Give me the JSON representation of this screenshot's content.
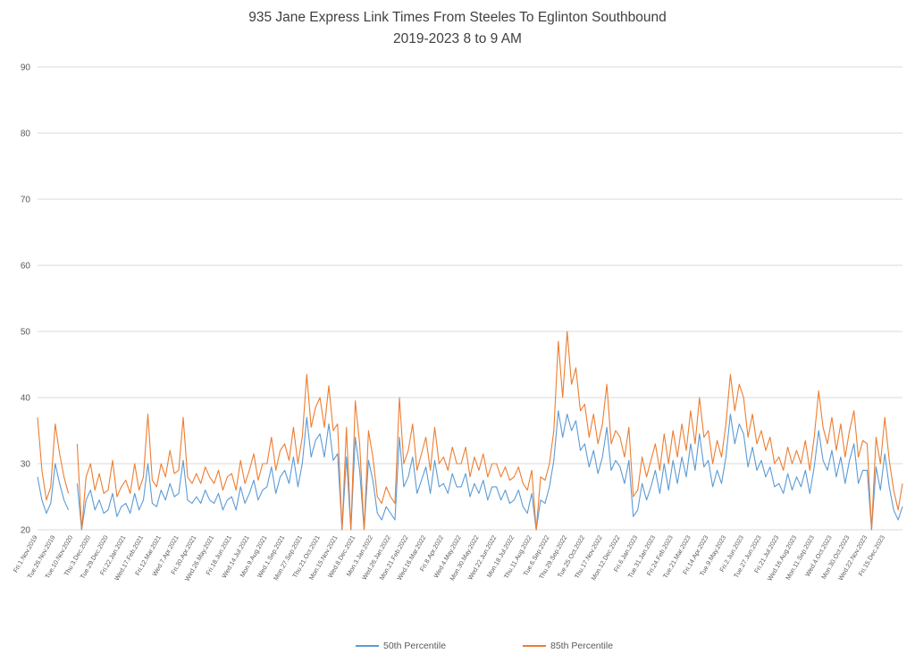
{
  "title": {
    "line1": "935 Jane Express Link Times From Steeles To Eglinton Southbound",
    "line2": "2019-2023 8 to 9 AM"
  },
  "colors": {
    "series_50th": "#5B9BD5",
    "series_85th": "#ED7D31",
    "gridline": "#D9D9D9",
    "axis_text": "#595959",
    "title_text": "#404040",
    "background": "#FFFFFF"
  },
  "chart_data": {
    "type": "line",
    "title": "935 Jane Express Link Times From Steeles To Eglinton Southbound",
    "subtitle": "2019-2023 8 to 9 AM",
    "ylim": [
      20,
      90
    ],
    "yticks": [
      20,
      30,
      40,
      50,
      60,
      70,
      80,
      90
    ],
    "grid": true,
    "legend_position": "bottom",
    "samples_per_category": 4,
    "categories": [
      "Fri.1.Nov.2019",
      "Tue.26.Nov.2019",
      "Tue.10.Nov.2020",
      "Thu.3.Dec.2020",
      "Tue.29.Dec.2020",
      "Fri.22.Jan.2021",
      "Wed.17.Feb.2021",
      "Fri.12.Mar.2021",
      "Wed.7.Apr.2021",
      "Fri.30.Apr.2021",
      "Wed.26.May.2021",
      "Fri.18.Jun.2021",
      "Wed.14.Jul.2021",
      "Mon.9.Aug.2021",
      "Wed.1.Sep.2021",
      "Mon.27.Sep.2021",
      "Thu.21.Oct.2021",
      "Mon.15.Nov.2021",
      "Wed.8.Dec.2021",
      "Mon.3.Jan.2022",
      "Wed.26.Jan.2022",
      "Mon.21.Feb.2022",
      "Wed.16.Mar.2022",
      "Fri.8.Apr.2022",
      "Wed.4.May.2022",
      "Mon.30.May.2022",
      "Wed.22.Jun.2022",
      "Mon.18.Jul.2022",
      "Thu.11.Aug.2022",
      "Tue.6.Sep.2022",
      "Thu.29.Sep.2022",
      "Tue.25.Oct.2022",
      "Thu.17.Nov.2022",
      "Mon.12.Dec.2022",
      "Fri.6.Jan.2023",
      "Tue.31.Jan.2023",
      "Fri.24.Feb.2023",
      "Tue.21.Mar.2023",
      "Fri.14.Apr.2023",
      "Tue.9.May.2023",
      "Fri.2.Jun.2023",
      "Tue.27.Jun.2023",
      "Fri.21.Jul.2023",
      "Wed.16.Aug.2023",
      "Mon.11.Sep.2023",
      "Wed.4.Oct.2023",
      "Mon.30.Oct.2023",
      "Wed.22.Nov.2023",
      "Fri.15.Dec.2023"
    ],
    "series": [
      {
        "name": "50th Percentile",
        "color": "#5B9BD5",
        "values": [
          28,
          24.5,
          22.5,
          24,
          30,
          27,
          24.5,
          23,
          null,
          27,
          20,
          24.5,
          26,
          23,
          24.5,
          22.5,
          23,
          25.5,
          22,
          23.5,
          24,
          22.5,
          25.5,
          23,
          24.5,
          30,
          24,
          23.5,
          26,
          24.5,
          27,
          25,
          25.5,
          30.5,
          24.5,
          24,
          25,
          24,
          26,
          24.5,
          24,
          25.5,
          23,
          24.5,
          25,
          23,
          26.5,
          24,
          25.5,
          27.5,
          24.5,
          26,
          26.5,
          29.5,
          25.5,
          28,
          29,
          27,
          31,
          26.5,
          30,
          37,
          31,
          33.5,
          34.5,
          31,
          36,
          30.5,
          31.5,
          20,
          31,
          20,
          34,
          29,
          20,
          30.5,
          27.5,
          22.5,
          21.5,
          23.5,
          22.5,
          21.5,
          34,
          26.5,
          28,
          31,
          25.5,
          27.5,
          29.5,
          25.5,
          30.5,
          26.5,
          27,
          25.5,
          28.5,
          26.5,
          26.5,
          28.5,
          25,
          27,
          25.5,
          27.5,
          24.5,
          26.5,
          26.5,
          24.5,
          26,
          24,
          24.5,
          26,
          23.5,
          22.5,
          25.5,
          20,
          24.5,
          24,
          26.5,
          30.5,
          38,
          34,
          37.5,
          35,
          36.5,
          32,
          33,
          29.5,
          32,
          28.5,
          31,
          35.5,
          29,
          30.5,
          29.5,
          27,
          30.5,
          22,
          23,
          27,
          24.5,
          26.5,
          29,
          25.5,
          30,
          26,
          30.5,
          27,
          31,
          28,
          33,
          29,
          34.5,
          29.5,
          30.5,
          26.5,
          29,
          27,
          31,
          37.5,
          33,
          36,
          34.5,
          29.5,
          32.5,
          29,
          30.5,
          28,
          29.5,
          26.5,
          27,
          25.5,
          28.5,
          26,
          28,
          26.5,
          29,
          25.5,
          29.5,
          35,
          30.5,
          29,
          32,
          28,
          31,
          27,
          30.5,
          33,
          27,
          29,
          29,
          20,
          29.5,
          26,
          31.5,
          26.5,
          23,
          21.5,
          23.5
        ]
      },
      {
        "name": "85th Percentile",
        "color": "#ED7D31",
        "values": [
          37,
          29,
          24.5,
          26.5,
          36,
          31.5,
          28,
          25.5,
          null,
          33,
          20,
          28,
          30,
          26,
          28.5,
          25.5,
          26,
          30.5,
          25,
          26.5,
          27.5,
          25.5,
          30,
          26,
          28,
          37.5,
          27.5,
          26.5,
          30,
          28,
          32,
          28.5,
          29,
          37,
          28,
          27,
          28.5,
          27,
          29.5,
          28,
          27,
          29,
          26,
          28,
          28.5,
          26,
          30.5,
          27,
          29,
          31.5,
          27.5,
          30,
          30,
          34,
          29,
          32,
          33,
          30.5,
          35.5,
          30,
          34,
          43.5,
          35.5,
          38.5,
          40,
          35.5,
          41.8,
          35,
          36,
          20,
          35.5,
          20,
          39.5,
          33,
          20,
          35,
          31,
          25,
          24,
          26.5,
          25,
          24,
          40,
          30,
          32,
          36,
          29,
          31.5,
          34,
          29,
          35.5,
          30,
          31,
          29,
          32.5,
          30,
          30,
          32.5,
          28,
          31,
          29,
          31.5,
          28,
          30,
          30,
          28,
          29.5,
          27.5,
          28,
          29.5,
          27,
          26,
          29,
          20,
          28,
          27.5,
          30,
          35,
          48.5,
          40,
          50,
          42,
          44.5,
          38,
          39,
          34,
          37.5,
          33,
          36,
          42,
          33,
          35,
          34,
          31,
          35.5,
          25,
          26,
          31,
          28,
          30.5,
          33,
          29,
          34.5,
          30,
          35,
          31,
          36,
          32,
          38,
          33,
          40,
          34,
          35,
          30,
          33.5,
          31,
          36,
          43.5,
          38,
          42,
          40,
          34,
          37.5,
          33,
          35,
          32,
          34,
          30,
          31,
          29,
          32.5,
          30,
          32,
          30,
          33.5,
          29,
          34,
          41,
          35.5,
          33,
          37,
          32,
          36,
          31,
          35,
          38,
          31,
          33.5,
          33,
          20,
          34,
          30,
          37,
          30.5,
          26,
          23,
          27
        ]
      }
    ]
  },
  "legend": {
    "items": [
      {
        "label": "50th Percentile",
        "color": "#5B9BD5"
      },
      {
        "label": "85th Percentile",
        "color": "#ED7D31"
      }
    ]
  }
}
